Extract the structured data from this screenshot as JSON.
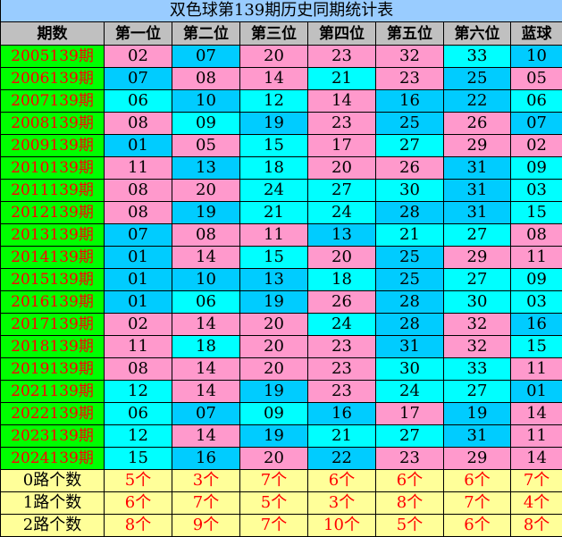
{
  "title": "双色球第139期历史同期统计表",
  "headers": [
    "期数",
    "第一位",
    "第二位",
    "第三位",
    "第四位",
    "第五位",
    "第六位",
    "蓝球"
  ],
  "colors": {
    "mod0": "#00ffff",
    "mod1": "#00ccff",
    "mod2": "#ff99cc",
    "period_bg": "#00ff00",
    "period_text": "#ff0000",
    "footer_bg": "#ffff99"
  },
  "rows": [
    {
      "period": "2005139期",
      "nums": [
        "02",
        "07",
        "20",
        "23",
        "32",
        "33",
        "10"
      ]
    },
    {
      "period": "2006139期",
      "nums": [
        "07",
        "08",
        "14",
        "21",
        "23",
        "25",
        "05"
      ]
    },
    {
      "period": "2007139期",
      "nums": [
        "06",
        "10",
        "12",
        "14",
        "16",
        "22",
        "06"
      ]
    },
    {
      "period": "2008139期",
      "nums": [
        "08",
        "09",
        "19",
        "23",
        "25",
        "26",
        "07"
      ]
    },
    {
      "period": "2009139期",
      "nums": [
        "01",
        "05",
        "15",
        "17",
        "27",
        "29",
        "02"
      ]
    },
    {
      "period": "2010139期",
      "nums": [
        "11",
        "13",
        "18",
        "20",
        "26",
        "31",
        "09"
      ]
    },
    {
      "period": "2011139期",
      "nums": [
        "08",
        "20",
        "24",
        "27",
        "30",
        "31",
        "03"
      ]
    },
    {
      "period": "2012139期",
      "nums": [
        "08",
        "19",
        "21",
        "24",
        "28",
        "31",
        "15"
      ]
    },
    {
      "period": "2013139期",
      "nums": [
        "07",
        "08",
        "11",
        "13",
        "21",
        "27",
        "08"
      ]
    },
    {
      "period": "2014139期",
      "nums": [
        "01",
        "14",
        "15",
        "20",
        "25",
        "29",
        "11"
      ]
    },
    {
      "period": "2015139期",
      "nums": [
        "01",
        "10",
        "13",
        "18",
        "25",
        "27",
        "09"
      ]
    },
    {
      "period": "2016139期",
      "nums": [
        "01",
        "06",
        "19",
        "26",
        "28",
        "30",
        "03"
      ]
    },
    {
      "period": "2017139期",
      "nums": [
        "02",
        "14",
        "20",
        "24",
        "28",
        "32",
        "16"
      ]
    },
    {
      "period": "2018139期",
      "nums": [
        "11",
        "18",
        "20",
        "23",
        "31",
        "32",
        "15"
      ]
    },
    {
      "period": "2019139期",
      "nums": [
        "08",
        "14",
        "20",
        "23",
        "30",
        "33",
        "11"
      ]
    },
    {
      "period": "2021139期",
      "nums": [
        "12",
        "14",
        "19",
        "23",
        "24",
        "27",
        "01"
      ]
    },
    {
      "period": "2022139期",
      "nums": [
        "06",
        "07",
        "09",
        "16",
        "17",
        "19",
        "14"
      ]
    },
    {
      "period": "2023139期",
      "nums": [
        "12",
        "14",
        "19",
        "21",
        "27",
        "31",
        "11"
      ]
    },
    {
      "period": "2024139期",
      "nums": [
        "15",
        "16",
        "20",
        "22",
        "23",
        "29",
        "14"
      ]
    }
  ],
  "footer": [
    {
      "label": "0路个数",
      "counts": [
        "5个",
        "3个",
        "7个",
        "6个",
        "6个",
        "6个",
        "7个"
      ]
    },
    {
      "label": "1路个数",
      "counts": [
        "6个",
        "7个",
        "5个",
        "3个",
        "8个",
        "7个",
        "4个"
      ]
    },
    {
      "label": "2路个数",
      "counts": [
        "8个",
        "9个",
        "7个",
        "10个",
        "5个",
        "6个",
        "8个"
      ]
    }
  ]
}
